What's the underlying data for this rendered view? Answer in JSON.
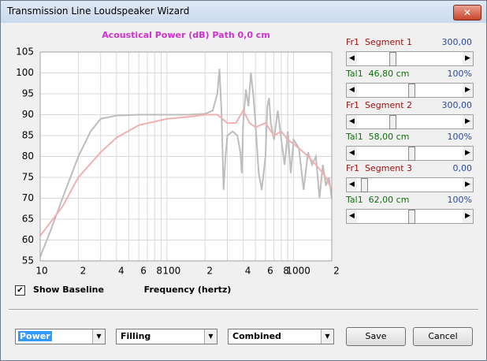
{
  "window": {
    "title": "Transmission Line Loudspeaker Wizard"
  },
  "chart_data": {
    "type": "line",
    "title": "Acoustical Power (dB)   Path 0,0 cm",
    "x_label": "Frequency (hertz)",
    "log_x": true,
    "grid": true,
    "xlim": [
      10,
      2000
    ],
    "ylim": [
      55,
      105
    ],
    "xticks": [
      10,
      {
        "value": 20,
        "label": "2"
      },
      {
        "value": 40,
        "label": "4"
      },
      {
        "value": 60,
        "label": "6"
      },
      {
        "value": 80,
        "label": "8"
      },
      100,
      {
        "value": 200,
        "label": "2"
      },
      {
        "value": 400,
        "label": "4"
      },
      {
        "value": 600,
        "label": "6"
      },
      {
        "value": 800,
        "label": "8"
      },
      1000,
      {
        "value": 2000,
        "label": "2"
      }
    ],
    "xminor": [
      30,
      50,
      70,
      90,
      300,
      500,
      700,
      900
    ],
    "yticks": [
      55,
      60,
      65,
      70,
      75,
      80,
      85,
      90,
      95,
      100,
      105
    ],
    "series": [
      {
        "color": "#bdbdbd",
        "x": [
          10,
          12,
          15,
          20,
          25,
          30,
          40,
          60,
          100,
          150,
          200,
          230,
          250,
          260,
          270,
          280,
          290,
          300,
          330,
          360,
          380,
          390,
          400,
          420,
          440,
          460,
          480,
          500,
          530,
          560,
          600,
          620,
          640,
          660,
          700,
          750,
          800,
          850,
          900,
          950,
          1000,
          1100,
          1200,
          1300,
          1400,
          1500,
          1600,
          1700,
          1800,
          1900,
          2000
        ],
        "values": [
          56,
          62,
          70,
          80,
          86,
          89,
          89.8,
          90,
          90,
          90,
          90.2,
          91,
          95,
          101,
          90,
          72,
          80,
          85,
          86,
          85,
          81,
          76,
          88,
          96,
          92,
          100,
          95,
          88,
          76,
          72,
          80,
          92,
          94,
          88,
          84,
          91,
          84,
          78,
          86,
          76,
          84,
          82,
          72,
          81,
          78,
          80,
          70,
          78,
          73,
          75,
          70
        ]
      },
      {
        "color": "#f0b0b0",
        "x": [
          10,
          15,
          20,
          30,
          40,
          60,
          100,
          150,
          200,
          250,
          300,
          350,
          400,
          450,
          500,
          600,
          700,
          800,
          900,
          1000,
          1200,
          1400,
          1600,
          1800,
          2000
        ],
        "values": [
          61,
          68,
          75,
          81,
          84.5,
          87.5,
          89,
          89.5,
          90,
          90,
          88,
          88,
          91,
          88,
          87,
          88,
          85,
          86,
          84,
          83,
          81,
          79,
          77,
          75,
          72
        ]
      }
    ]
  },
  "show_baseline": {
    "label": "Show Baseline",
    "checked": true
  },
  "sliders": [
    {
      "label": "Fr1  Segment 1",
      "value": "300,00"
    },
    {
      "label": "Tal1  46,80 cm",
      "value": "100%"
    },
    {
      "label": "Fr1  Segment 2",
      "value": "300,00"
    },
    {
      "label": "Tal1  58,00 cm",
      "value": "100%"
    },
    {
      "label": "Fr1  Segment 3",
      "value": "0,00"
    },
    {
      "label": "Tal1  62,00 cm",
      "value": "100%"
    }
  ],
  "dropdowns": [
    "Power",
    "Filling",
    "Combined"
  ],
  "buttons": [
    "Save",
    "Cancel"
  ]
}
